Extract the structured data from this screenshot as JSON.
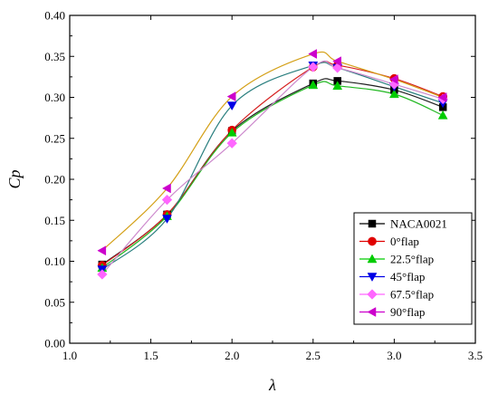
{
  "chart_data": {
    "type": "line",
    "xlabel": "λ",
    "ylabel": "Cp",
    "xlim": [
      1.0,
      3.5
    ],
    "ylim": [
      0.0,
      0.4
    ],
    "xticks": [
      "1.0",
      "1.5",
      "2.0",
      "2.5",
      "3.0",
      "3.5"
    ],
    "yticks": [
      "0.00",
      "0.05",
      "0.10",
      "0.15",
      "0.20",
      "0.25",
      "0.30",
      "0.35",
      "0.40"
    ],
    "grid": false,
    "legend_position": "bottom-right",
    "x": [
      1.2,
      1.6,
      2.0,
      2.5,
      2.65,
      3.0,
      3.3
    ],
    "series": [
      {
        "name": "NACA0021",
        "color": "#000000",
        "marker": "square",
        "values": [
          0.096,
          0.157,
          0.259,
          0.317,
          0.32,
          0.309,
          0.288
        ]
      },
      {
        "name": "0°flap",
        "color": "#e00000",
        "marker": "circle",
        "values": [
          0.095,
          0.157,
          0.26,
          0.337,
          0.339,
          0.323,
          0.301
        ]
      },
      {
        "name": "22.5°flap",
        "color": "#00cc00",
        "marker": "triangle-up",
        "values": [
          0.092,
          0.155,
          0.257,
          0.315,
          0.314,
          0.304,
          0.278
        ]
      },
      {
        "name": "45°flap",
        "color": "#0000e6",
        "marker": "triangle-down",
        "values": [
          0.09,
          0.152,
          0.29,
          0.339,
          0.336,
          0.313,
          0.293
        ]
      },
      {
        "name": "67.5°flap",
        "color": "#ff66ff",
        "marker": "diamond",
        "values": [
          0.084,
          0.175,
          0.244,
          0.337,
          0.336,
          0.316,
          0.298
        ]
      },
      {
        "name": "90°flap",
        "color": "#cc00cc",
        "marker": "triangle-left",
        "values": [
          0.113,
          0.189,
          0.301,
          0.353,
          0.344,
          0.322,
          0.3
        ]
      }
    ],
    "curve_colors": [
      "#202020",
      "#d62020",
      "#22b822",
      "#2a7f7f",
      "#cc88cc",
      "#d4a017"
    ]
  }
}
